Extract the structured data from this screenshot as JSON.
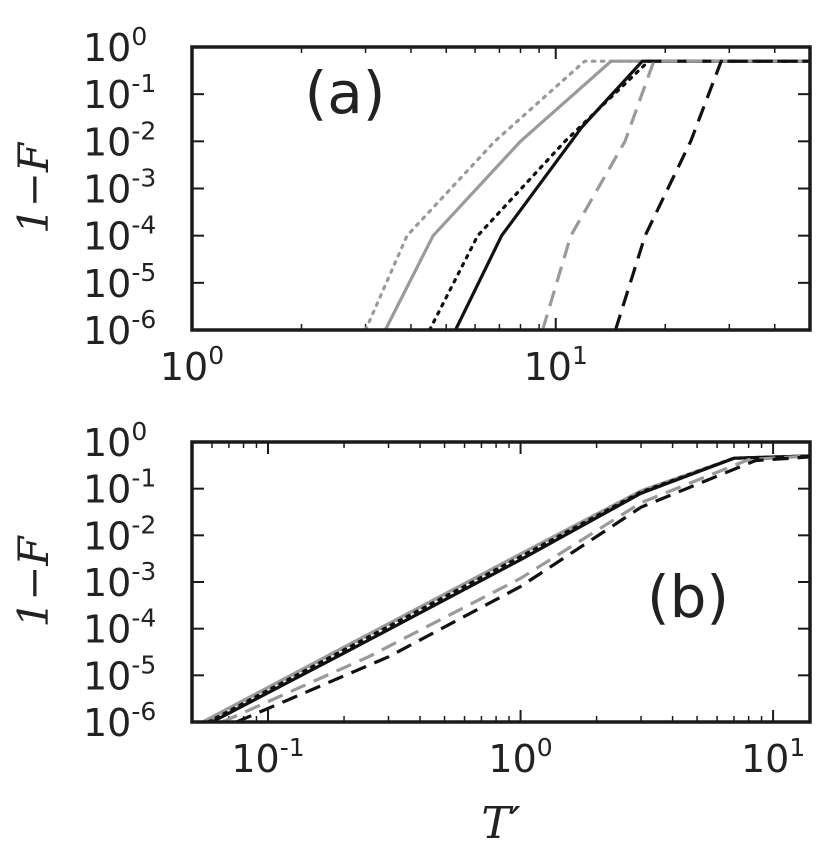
{
  "colors": {
    "black": "#111111",
    "gray": "#9a9a9a",
    "frame": "#1a1a1a"
  },
  "chart_data": [
    {
      "type": "line",
      "panel_label": "(a)",
      "xlabel": "",
      "ylabel": "1−F",
      "xscale": "log",
      "yscale": "log",
      "xlim": [
        1,
        50
      ],
      "ylim": [
        1e-06,
        1
      ],
      "xticks": [
        {
          "value": 1,
          "base": "10",
          "exp": "0"
        },
        {
          "value": 10,
          "base": "10",
          "exp": "1"
        }
      ],
      "yticks": [
        {
          "value": 1,
          "base": "10",
          "exp": "0"
        },
        {
          "value": 0.1,
          "base": "10",
          "exp": "-1"
        },
        {
          "value": 0.01,
          "base": "10",
          "exp": "-2"
        },
        {
          "value": 0.001,
          "base": "10",
          "exp": "-3"
        },
        {
          "value": 0.0001,
          "base": "10",
          "exp": "-4"
        },
        {
          "value": 1e-05,
          "base": "10",
          "exp": "-5"
        },
        {
          "value": 1e-06,
          "base": "10",
          "exp": "-6"
        }
      ],
      "series": [
        {
          "color": "gray",
          "style": "dotted",
          "points": [
            [
              3.0,
              1e-06
            ],
            [
              3.9,
              0.0001
            ],
            [
              6.8,
              0.01
            ],
            [
              12.0,
              0.5
            ],
            [
              50,
              0.5
            ]
          ]
        },
        {
          "color": "gray",
          "style": "solid",
          "points": [
            [
              3.4,
              1e-06
            ],
            [
              4.6,
              0.0001
            ],
            [
              8.0,
              0.01
            ],
            [
              14.2,
              0.5
            ],
            [
              50,
              0.5
            ]
          ]
        },
        {
          "color": "black",
          "style": "dotted",
          "points": [
            [
              4.5,
              1e-06
            ],
            [
              6.1,
              0.0001
            ],
            [
              10.6,
              0.01
            ],
            [
              18.0,
              0.5
            ],
            [
              50,
              0.5
            ]
          ]
        },
        {
          "color": "black",
          "style": "solid",
          "points": [
            [
              5.3,
              1e-06
            ],
            [
              7.1,
              0.0001
            ],
            [
              11.8,
              0.02
            ],
            [
              17.3,
              0.5
            ],
            [
              50,
              0.5
            ]
          ]
        },
        {
          "color": "gray",
          "style": "dashed",
          "points": [
            [
              9.2,
              1e-06
            ],
            [
              11.0,
              0.0001
            ],
            [
              15.5,
              0.01
            ],
            [
              18.6,
              0.5
            ],
            [
              50,
              0.5
            ]
          ]
        },
        {
          "color": "black",
          "style": "dashed",
          "points": [
            [
              14.6,
              1e-06
            ],
            [
              17.6,
              0.0001
            ],
            [
              23.5,
              0.01
            ],
            [
              28.5,
              0.5
            ],
            [
              50,
              0.5
            ]
          ]
        }
      ]
    },
    {
      "type": "line",
      "panel_label": "(b)",
      "xlabel": "T′",
      "ylabel": "1−F",
      "xscale": "log",
      "yscale": "log",
      "xlim": [
        0.05,
        14
      ],
      "ylim": [
        1e-06,
        1
      ],
      "xticks": [
        {
          "value": 0.1,
          "base": "10",
          "exp": "-1"
        },
        {
          "value": 1,
          "base": "10",
          "exp": "0"
        },
        {
          "value": 10,
          "base": "10",
          "exp": "1"
        }
      ],
      "yticks": [
        {
          "value": 1,
          "base": "10",
          "exp": "0"
        },
        {
          "value": 0.1,
          "base": "10",
          "exp": "-1"
        },
        {
          "value": 0.01,
          "base": "10",
          "exp": "-2"
        },
        {
          "value": 0.001,
          "base": "10",
          "exp": "-3"
        },
        {
          "value": 0.0001,
          "base": "10",
          "exp": "-4"
        },
        {
          "value": 1e-05,
          "base": "10",
          "exp": "-5"
        },
        {
          "value": 1e-06,
          "base": "10",
          "exp": "-6"
        }
      ],
      "series": [
        {
          "color": "gray",
          "style": "solid",
          "points": [
            [
              0.055,
              1e-06
            ],
            [
              0.2,
              4e-05
            ],
            [
              1.0,
              0.004
            ],
            [
              3.0,
              0.09
            ],
            [
              7.0,
              0.45
            ],
            [
              14,
              0.5
            ]
          ]
        },
        {
          "color": "gray",
          "style": "dotted",
          "points": [
            [
              0.057,
              1e-06
            ],
            [
              0.2,
              3.8e-05
            ],
            [
              1.0,
              0.0038
            ],
            [
              3.0,
              0.088
            ],
            [
              7.0,
              0.45
            ],
            [
              14,
              0.5
            ]
          ]
        },
        {
          "color": "black",
          "style": "dotted",
          "points": [
            [
              0.058,
              1e-06
            ],
            [
              0.2,
              3.5e-05
            ],
            [
              1.0,
              0.0035
            ],
            [
              3.0,
              0.085
            ],
            [
              7.0,
              0.45
            ],
            [
              14,
              0.5
            ]
          ]
        },
        {
          "color": "black",
          "style": "solid",
          "points": [
            [
              0.06,
              1e-06
            ],
            [
              0.2,
              3e-05
            ],
            [
              1.0,
              0.003
            ],
            [
              3.0,
              0.08
            ],
            [
              7.0,
              0.45
            ],
            [
              14,
              0.5
            ]
          ]
        },
        {
          "color": "gray",
          "style": "dashed",
          "points": [
            [
              0.066,
              1e-06
            ],
            [
              0.25,
              2.5e-05
            ],
            [
              1.0,
              0.0012
            ],
            [
              3.0,
              0.05
            ],
            [
              8.0,
              0.42
            ],
            [
              14,
              0.5
            ]
          ]
        },
        {
          "color": "black",
          "style": "dashed",
          "points": [
            [
              0.075,
              1e-06
            ],
            [
              0.3,
              2.5e-05
            ],
            [
              1.0,
              0.0008
            ],
            [
              3.0,
              0.04
            ],
            [
              8.5,
              0.4
            ],
            [
              14,
              0.48
            ]
          ]
        }
      ]
    }
  ]
}
